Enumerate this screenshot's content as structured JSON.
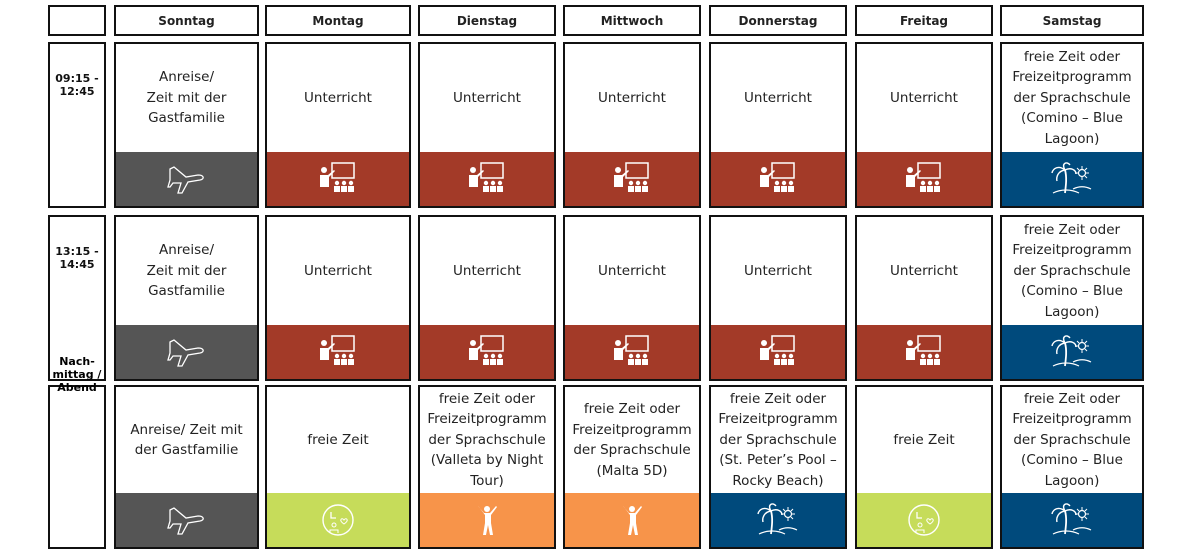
{
  "header": {
    "days": [
      "Sonntag",
      "Montag",
      "Dienstag",
      "Mittwoch",
      "Donnerstag",
      "Freitag",
      "Samstag"
    ]
  },
  "rows": [
    {
      "time": "09:15 - 12:45",
      "cells": [
        "Anreise/\nZeit mit der\nGastfamilie",
        "Unterricht",
        "Unterricht",
        "Unterricht",
        "Unterricht",
        "Unterricht",
        "freie Zeit oder Freizeitprogramm der Sprachschule (Comino – Blue Lagoon)"
      ]
    },
    {
      "time": "13:15 - 14:45",
      "cells": [
        "Anreise/\nZeit mit der\nGastfamilie",
        "Unterricht",
        "Unterricht",
        "Unterricht",
        "Unterricht",
        "Unterricht",
        "freie Zeit oder Freizeitprogramm der Sprachschule (Comino – Blue Lagoon)"
      ]
    },
    {
      "time": "Nach- mittag / Abend",
      "cells": [
        "Anreise/ Zeit mit der Gastfamilie",
        "freie Zeit",
        "freie Zeit oder Freizeitprogramm der Sprachschule (Valleta by Night Tour)",
        "freie Zeit oder Freizeitprogramm der Sprachschule (Malta 5D)",
        "freie Zeit oder Freizeitprogramm der Sprachschule (St. Peter’s Pool – Rocky Beach)",
        "freie Zeit",
        "freie Zeit oder Freizeitprogramm der Sprachschule (Comino – Blue Lagoon)"
      ]
    }
  ]
}
